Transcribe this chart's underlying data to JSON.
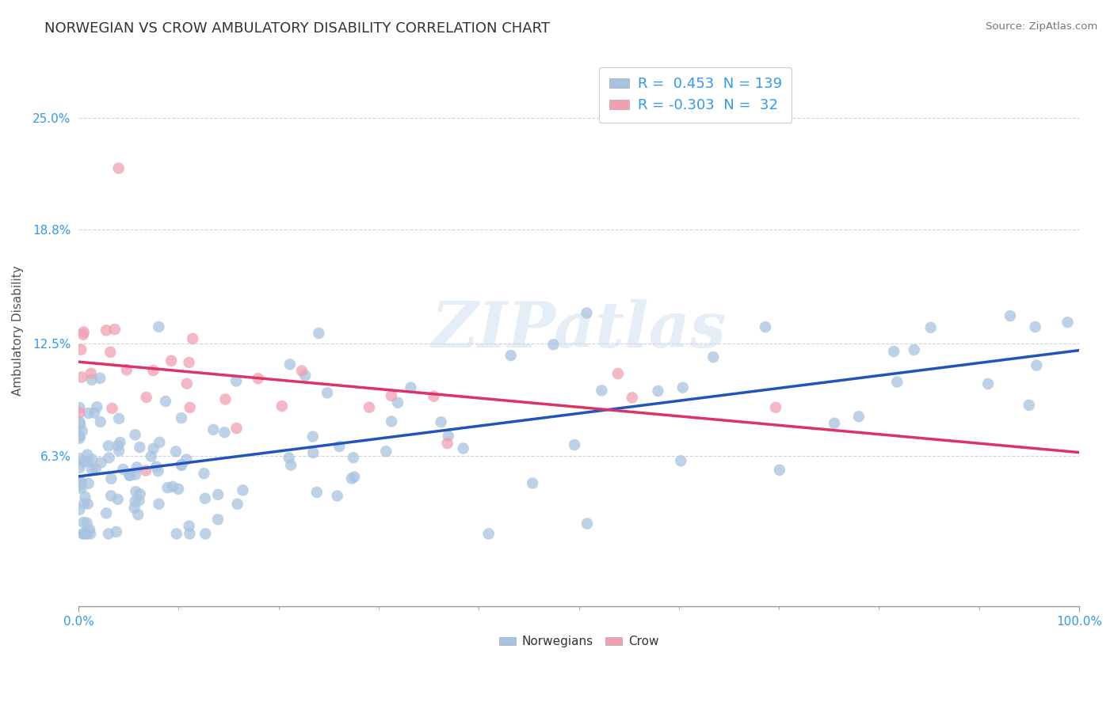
{
  "title": "NORWEGIAN VS CROW AMBULATORY DISABILITY CORRELATION CHART",
  "source_text": "Source: ZipAtlas.com",
  "ylabel": "Ambulatory Disability",
  "xlim": [
    0.0,
    1.0
  ],
  "ylim": [
    -0.02,
    0.285
  ],
  "yticks": [
    0.063,
    0.125,
    0.188,
    0.25
  ],
  "ytick_labels": [
    "6.3%",
    "12.5%",
    "18.8%",
    "25.0%"
  ],
  "xtick_labels": [
    "0.0%",
    "100.0%"
  ],
  "background_color": "#ffffff",
  "grid_color": "#c8c8c8",
  "norwegian_color": "#a8c4e0",
  "crow_color": "#f0a0b0",
  "norwegian_line_color": "#2255bb",
  "crow_line_color": "#dd3366",
  "legend_norwegian_r": "0.453",
  "legend_norwegian_n": "139",
  "legend_crow_r": "-0.303",
  "legend_crow_n": "32",
  "watermark_text": "ZIPatlas",
  "nor_seed": 17,
  "crow_seed": 99,
  "title_fontsize": 13,
  "axis_label_fontsize": 11,
  "tick_fontsize": 11,
  "legend_fontsize": 13
}
